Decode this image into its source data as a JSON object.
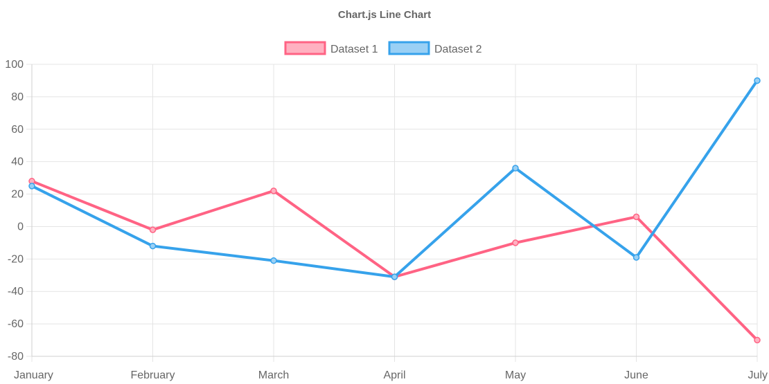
{
  "chart_data": {
    "type": "line",
    "title": "Chart.js Line Chart",
    "categories": [
      "January",
      "February",
      "March",
      "April",
      "May",
      "June",
      "July"
    ],
    "ylim": [
      -80,
      100
    ],
    "yticks": [
      100,
      80,
      60,
      40,
      20,
      0,
      -20,
      -40,
      -60,
      -80
    ],
    "grid": true,
    "legend_position": "top",
    "series": [
      {
        "name": "Dataset 1",
        "values": [
          28,
          -2,
          22,
          -31,
          -10,
          6,
          -70
        ],
        "color": "#ff6384",
        "fill": "#ffb1c1"
      },
      {
        "name": "Dataset 2",
        "values": [
          25,
          -12,
          -21,
          -31,
          36,
          -19,
          90
        ],
        "color": "#36a2eb",
        "fill": "#9ad0f5"
      }
    ]
  }
}
